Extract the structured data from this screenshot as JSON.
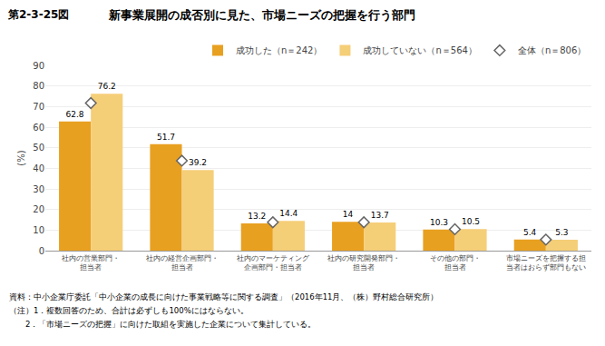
{
  "chart_data": {
    "type": "bar",
    "title": "新事業展開の成否別に見た、市場ニーズの把握を行う部門",
    "annotations": [
      "第2-3-25図",
      "資料：中小企業庁委託「中小企業の成長に向けた事業戦略等に関する調査」（2016年11月、（株）野村総合研究所）",
      "（注）1．複数回答のため、合計は必ずしも100%にはならない。",
      "　　2．「市場ニーズの把握」に向けた取組を実施した企業について集計している。"
    ],
    "ylabel": "(%)",
    "categories": [
      "社内の営業部門・\n担当者",
      "社内の経営企画部門・\n担当者",
      "社内のマーケティング\n企画部門・担当者",
      "社内の研究開発部門・\n担当者",
      "その他の部門・\n担当者",
      "市場ニーズを把握する担\n当者はおらず部門もない"
    ],
    "series": [
      {
        "name": "成功した（n＝242）",
        "type": "bar",
        "color": "#E8A020",
        "data_labels": true,
        "values": [
          62.8,
          51.7,
          13.2,
          14.0,
          10.3,
          5.4
        ]
      },
      {
        "name": "成功していない（n＝564）",
        "type": "bar",
        "color": "#F5CE78",
        "data_labels": true,
        "values": [
          76.2,
          39.2,
          14.4,
          13.7,
          10.5,
          5.3
        ]
      },
      {
        "name": "全体（n＝806）",
        "type": "scatter",
        "marker": "diamond",
        "color": "#666666",
        "data_labels": false,
        "values": [
          71.7,
          43.7,
          13.8,
          13.8,
          10.4,
          5.35
        ]
      }
    ],
    "ylim": [
      0,
      90
    ],
    "yticks": [
      0,
      10,
      20,
      30,
      40,
      50,
      60,
      70,
      80,
      90
    ],
    "grid": true,
    "legend": "upper right"
  }
}
